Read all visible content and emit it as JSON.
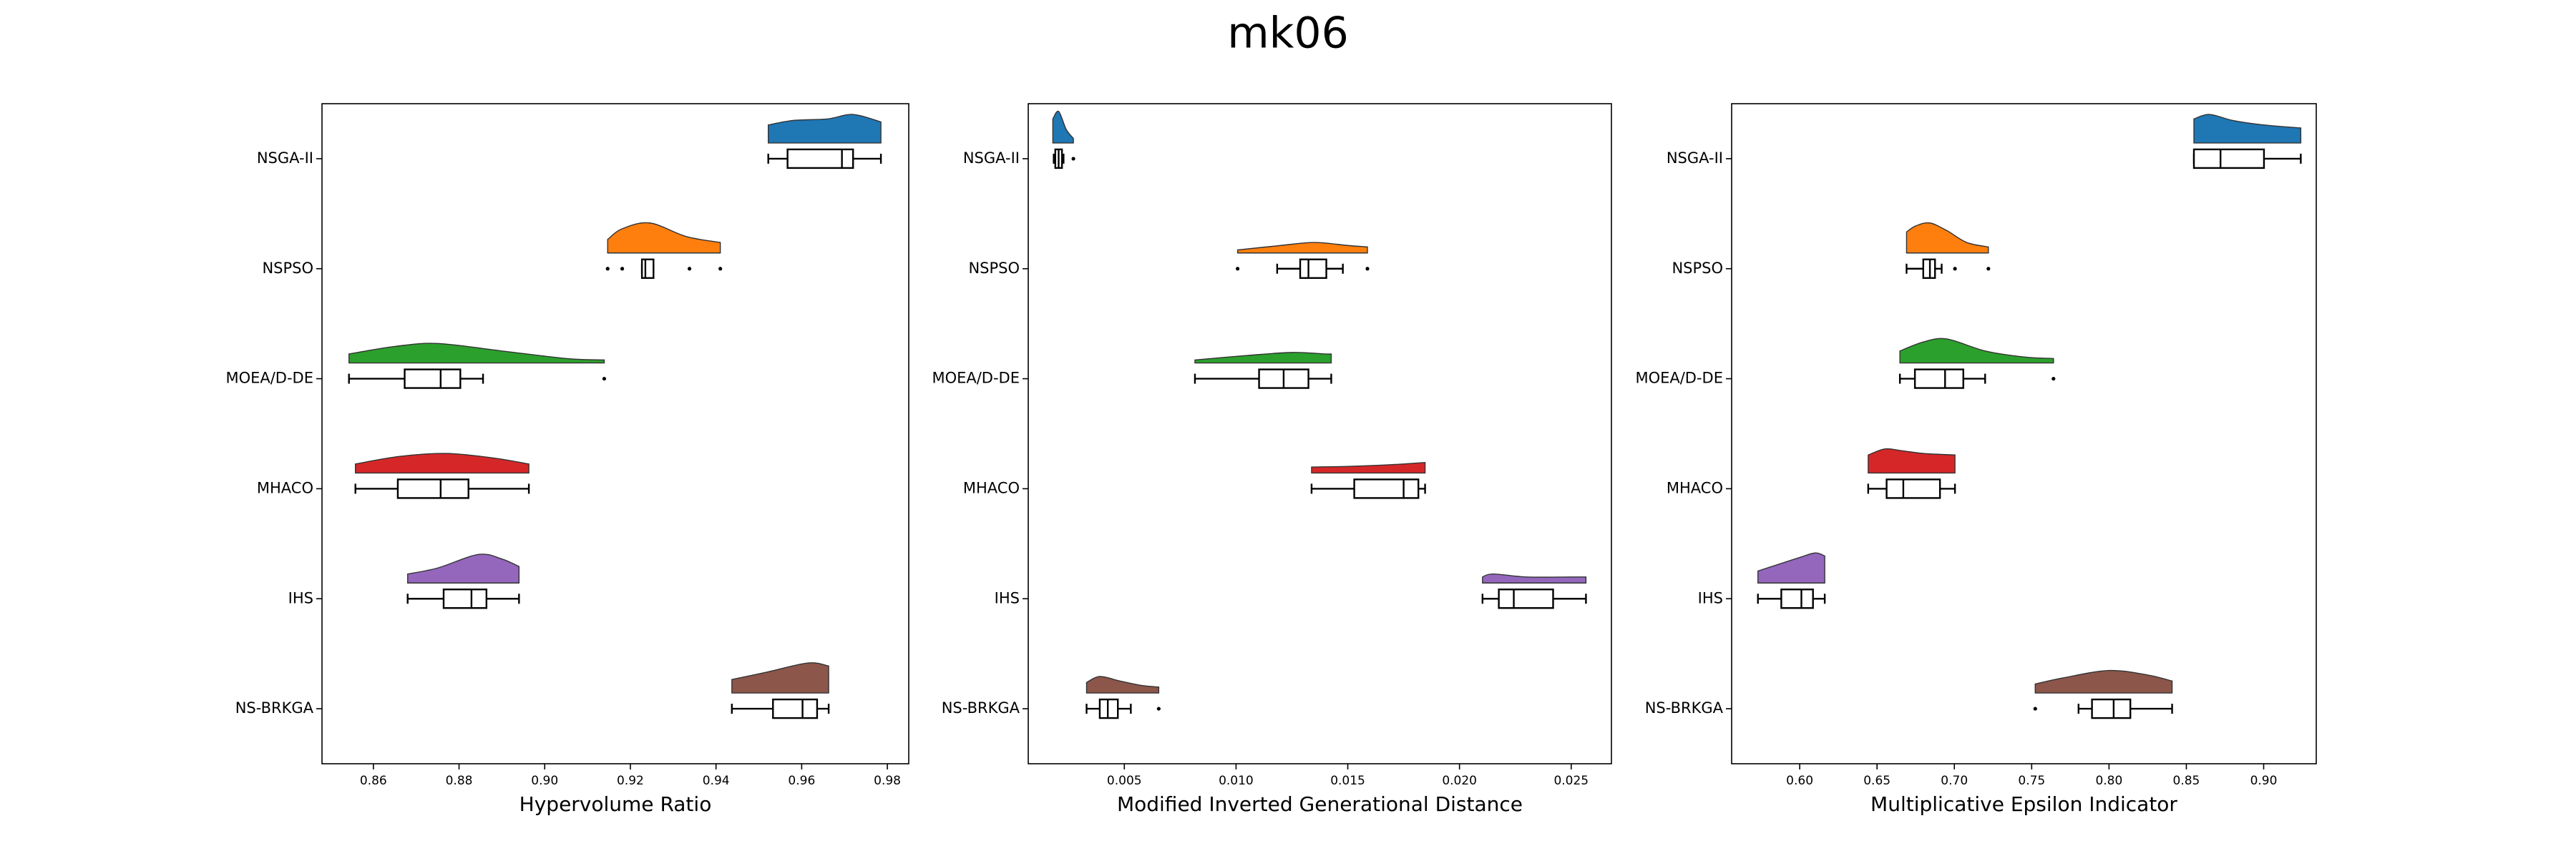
{
  "title": "mk06",
  "chart_data": [
    {
      "type": "raincloud",
      "x_label": "Hypervolume Ratio",
      "categories": [
        "NSGA-II",
        "NSPSO",
        "MOEA/D-DE",
        "MHACO",
        "IHS",
        "NS-BRKGA"
      ],
      "colors": [
        "#1f77b4",
        "#ff7f0e",
        "#2ca02c",
        "#d62728",
        "#9467bd",
        "#8c564b"
      ],
      "xlim": [
        0.848,
        0.985
      ],
      "xticks": [
        0.86,
        0.88,
        {
          "value": 0.9,
          "label": "0.90"
        },
        0.92,
        0.94,
        0.96,
        0.98
      ],
      "boxes": [
        {
          "whislo": 0.9522,
          "q1": 0.9567,
          "med": 0.9694,
          "q3": 0.972,
          "whishi": 0.9785,
          "fliers": [],
          "cloud": {
            "x": [
              0.9522,
              0.958,
              0.966,
              0.972,
              0.9785
            ],
            "density": [
              0.6,
              0.75,
              0.8,
              0.95,
              0.7
            ]
          }
        },
        {
          "whislo": 0.9227,
          "q1": 0.9227,
          "med": 0.9235,
          "q3": 0.9254,
          "whishi": 0.9254,
          "fliers": [
            0.9147,
            0.9181,
            0.9338,
            0.941
          ],
          "cloud": {
            "x": [
              0.9147,
              0.918,
              0.9245,
              0.933,
              0.941
            ],
            "density": [
              0.45,
              0.8,
              1.0,
              0.55,
              0.35
            ]
          }
        },
        {
          "whislo": 0.8543,
          "q1": 0.8673,
          "med": 0.8757,
          "q3": 0.8803,
          "whishi": 0.8856,
          "fliers": [
            0.9139
          ],
          "cloud": {
            "x": [
              0.8543,
              0.865,
              0.875,
              0.89,
              0.905,
              0.9139
            ],
            "density": [
              0.3,
              0.55,
              0.65,
              0.4,
              0.15,
              0.1
            ]
          }
        },
        {
          "whislo": 0.8558,
          "q1": 0.8657,
          "med": 0.8757,
          "q3": 0.8822,
          "whishi": 0.8963,
          "fliers": [],
          "cloud": {
            "x": [
              0.8558,
              0.866,
              0.877,
              0.888,
              0.8963
            ],
            "density": [
              0.3,
              0.55,
              0.65,
              0.5,
              0.3
            ]
          }
        },
        {
          "whislo": 0.868,
          "q1": 0.8764,
          "med": 0.8829,
          "q3": 0.8864,
          "whishi": 0.894,
          "fliers": [],
          "cloud": {
            "x": [
              0.868,
              0.875,
              0.8845,
              0.89,
              0.894
            ],
            "density": [
              0.3,
              0.5,
              0.95,
              0.8,
              0.55
            ]
          }
        },
        {
          "whislo": 0.9437,
          "q1": 0.9533,
          "med": 0.9602,
          "q3": 0.9636,
          "whishi": 0.9663,
          "fliers": [],
          "cloud": {
            "x": [
              0.9437,
              0.952,
              0.9615,
              0.9663
            ],
            "density": [
              0.45,
              0.7,
              1.0,
              0.9
            ]
          }
        }
      ]
    },
    {
      "type": "raincloud",
      "x_label": "Modified Inverted Generational Distance",
      "categories": [
        "NSGA-II",
        "NSPSO",
        "MOEA/D-DE",
        "MHACO",
        "IHS",
        "NS-BRKGA"
      ],
      "colors": [
        "#1f77b4",
        "#ff7f0e",
        "#2ca02c",
        "#d62728",
        "#9467bd",
        "#8c564b"
      ],
      "xlim": [
        0.0007,
        0.0268
      ],
      "xticks": [
        0.005,
        {
          "value": 0.01,
          "label": "0.010"
        },
        0.015,
        {
          "value": 0.02,
          "label": "0.020"
        },
        0.025
      ],
      "boxes": [
        {
          "whislo": 0.00184,
          "q1": 0.00191,
          "med": 0.00206,
          "q3": 0.00221,
          "whishi": 0.00228,
          "fliers": [
            0.00272
          ],
          "cloud": {
            "x": [
              0.0018,
              0.00206,
              0.0024,
              0.00272
            ],
            "density": [
              0.8,
              1.05,
              0.45,
              0.15
            ]
          }
        },
        {
          "whislo": 0.01184,
          "q1": 0.01287,
          "med": 0.01324,
          "q3": 0.01404,
          "whishi": 0.01478,
          "fliers": [
            0.01007,
            0.01588
          ],
          "cloud": {
            "x": [
              0.01007,
              0.012,
              0.0135,
              0.015,
              0.01588
            ],
            "density": [
              0.1,
              0.25,
              0.35,
              0.25,
              0.2
            ]
          }
        },
        {
          "whislo": 0.00816,
          "q1": 0.01103,
          "med": 0.01213,
          "q3": 0.01324,
          "whishi": 0.01426,
          "fliers": [],
          "cloud": {
            "x": [
              0.00816,
              0.0105,
              0.0125,
              0.014,
              0.01426
            ],
            "density": [
              0.1,
              0.25,
              0.35,
              0.3,
              0.3
            ]
          }
        },
        {
          "whislo": 0.01338,
          "q1": 0.01529,
          "med": 0.0175,
          "q3": 0.01816,
          "whishi": 0.01846,
          "fliers": [],
          "cloud": {
            "x": [
              0.01338,
              0.015,
              0.017,
              0.01846
            ],
            "density": [
              0.2,
              0.22,
              0.28,
              0.35
            ]
          }
        },
        {
          "whislo": 0.02103,
          "q1": 0.02176,
          "med": 0.02243,
          "q3": 0.02419,
          "whishi": 0.02566,
          "fliers": [],
          "cloud": {
            "x": [
              0.02103,
              0.0215,
              0.023,
              0.025,
              0.02566
            ],
            "density": [
              0.2,
              0.3,
              0.2,
              0.2,
              0.2
            ]
          }
        },
        {
          "whislo": 0.00331,
          "q1": 0.0039,
          "med": 0.00426,
          "q3": 0.00471,
          "whishi": 0.00529,
          "fliers": [
            0.00654
          ],
          "cloud": {
            "x": [
              0.00331,
              0.0039,
              0.0048,
              0.0058,
              0.00654
            ],
            "density": [
              0.35,
              0.55,
              0.4,
              0.25,
              0.2
            ]
          }
        }
      ]
    },
    {
      "type": "raincloud",
      "x_label": "Multiplicative Epsilon Indicator",
      "categories": [
        "NSGA-II",
        "NSPSO",
        "MOEA/D-DE",
        "MHACO",
        "IHS",
        "NS-BRKGA"
      ],
      "colors": [
        "#1f77b4",
        "#ff7f0e",
        "#2ca02c",
        "#d62728",
        "#9467bd",
        "#8c564b"
      ],
      "xlim": [
        0.556,
        0.934
      ],
      "xticks": [
        {
          "value": 0.6,
          "label": "0.60"
        },
        0.65,
        {
          "value": 0.7,
          "label": "0.70"
        },
        0.75,
        {
          "value": 0.8,
          "label": "0.80"
        },
        0.85,
        {
          "value": 0.9,
          "label": "0.90"
        }
      ],
      "boxes": [
        {
          "whislo": 0.8549,
          "q1": 0.8549,
          "med": 0.8721,
          "q3": 0.9002,
          "whishi": 0.924,
          "fliers": [],
          "cloud": {
            "x": [
              0.8549,
              0.865,
              0.88,
              0.9,
              0.924
            ],
            "density": [
              0.8,
              0.95,
              0.75,
              0.6,
              0.5
            ]
          }
        },
        {
          "whislo": 0.6691,
          "q1": 0.6799,
          "med": 0.6842,
          "q3": 0.6875,
          "whishi": 0.6918,
          "fliers": [
            0.7004,
            0.722
          ],
          "cloud": {
            "x": [
              0.6691,
              0.675,
              0.684,
              0.695,
              0.708,
              0.722
            ],
            "density": [
              0.7,
              0.9,
              1.0,
              0.75,
              0.35,
              0.2
            ]
          }
        },
        {
          "whislo": 0.6648,
          "q1": 0.6745,
          "med": 0.694,
          "q3": 0.7058,
          "whishi": 0.7199,
          "fliers": [
            0.7641
          ],
          "cloud": {
            "x": [
              0.6648,
              0.68,
              0.695,
              0.72,
              0.745,
              0.7641
            ],
            "density": [
              0.4,
              0.7,
              0.8,
              0.4,
              0.2,
              0.15
            ]
          }
        },
        {
          "whislo": 0.6443,
          "q1": 0.6562,
          "med": 0.667,
          "q3": 0.6907,
          "whishi": 0.7004,
          "fliers": [],
          "cloud": {
            "x": [
              0.6443,
              0.655,
              0.665,
              0.68,
              0.7004
            ],
            "density": [
              0.6,
              0.8,
              0.75,
              0.65,
              0.6
            ]
          }
        },
        {
          "whislo": 0.573,
          "q1": 0.5881,
          "med": 0.6011,
          "q3": 0.6086,
          "whishi": 0.6162,
          "fliers": [],
          "cloud": {
            "x": [
              0.573,
              0.585,
              0.6,
              0.61,
              0.6162
            ],
            "density": [
              0.4,
              0.6,
              0.85,
              1.0,
              0.9
            ]
          }
        },
        {
          "whislo": 0.7803,
          "q1": 0.789,
          "med": 0.803,
          "q3": 0.8138,
          "whishi": 0.8408,
          "fliers": [
            0.7523
          ],
          "cloud": {
            "x": [
              0.7523,
              0.77,
              0.8,
              0.825,
              0.8408
            ],
            "density": [
              0.3,
              0.5,
              0.75,
              0.6,
              0.4
            ]
          }
        }
      ]
    }
  ]
}
